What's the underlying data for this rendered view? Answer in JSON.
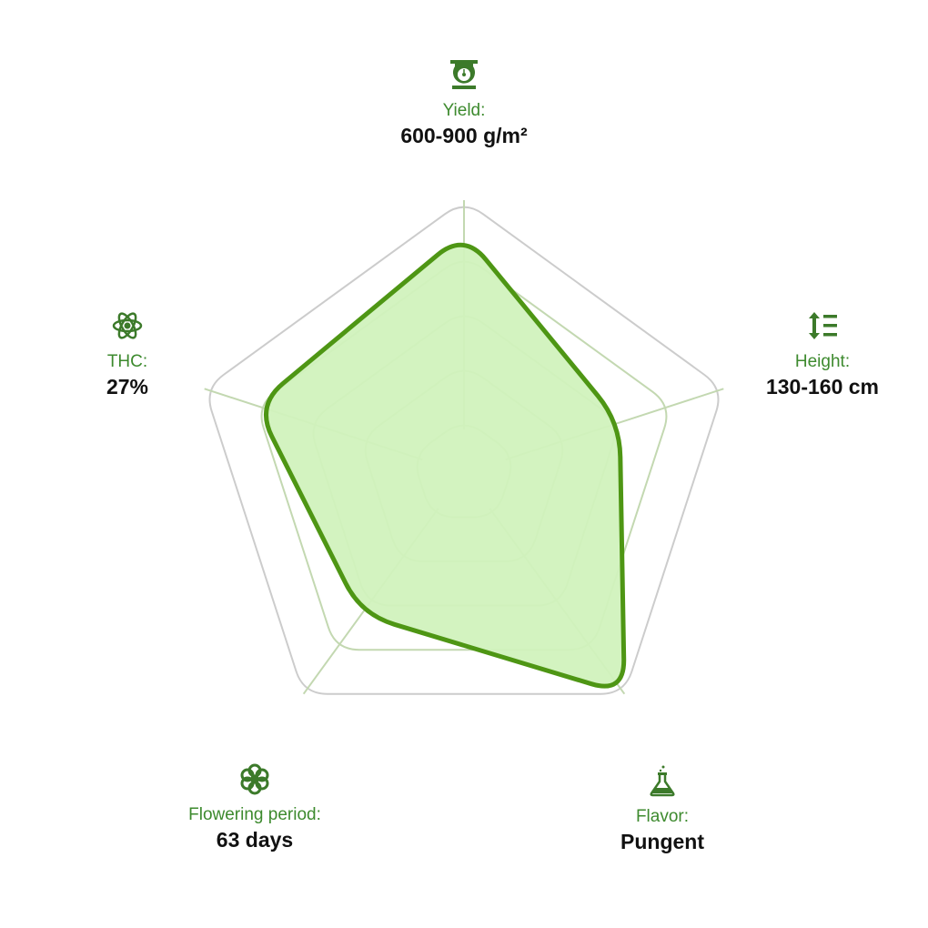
{
  "chart_data": {
    "type": "radar",
    "axes": [
      {
        "key": "yield",
        "label": "Yield:",
        "value_text": "600-900 g/m²",
        "icon": "scale-icon"
      },
      {
        "key": "height",
        "label": "Height:",
        "value_text": "130-160 cm",
        "icon": "height-icon"
      },
      {
        "key": "flavor",
        "label": "Flavor:",
        "value_text": "Pungent",
        "icon": "flask-icon"
      },
      {
        "key": "flowering",
        "label": "Flowering period:",
        "value_text": "63 days",
        "icon": "flower-icon"
      },
      {
        "key": "thc",
        "label": "THC:",
        "value_text": "27%",
        "icon": "atom-icon"
      }
    ],
    "scale": {
      "min": 0,
      "max": 5,
      "rings": 5
    },
    "series": [
      {
        "values": [
          4.4,
          3.0,
          5.0,
          3.2,
          4.0
        ]
      }
    ],
    "colors": {
      "fill": "#d1f2bd",
      "stroke": "#4e9614",
      "grid": "#cccccc",
      "inner_grid": "#c3d8b1",
      "label": "#3d8a2e",
      "value": "#111111",
      "icon": "#3c7a2a"
    }
  }
}
